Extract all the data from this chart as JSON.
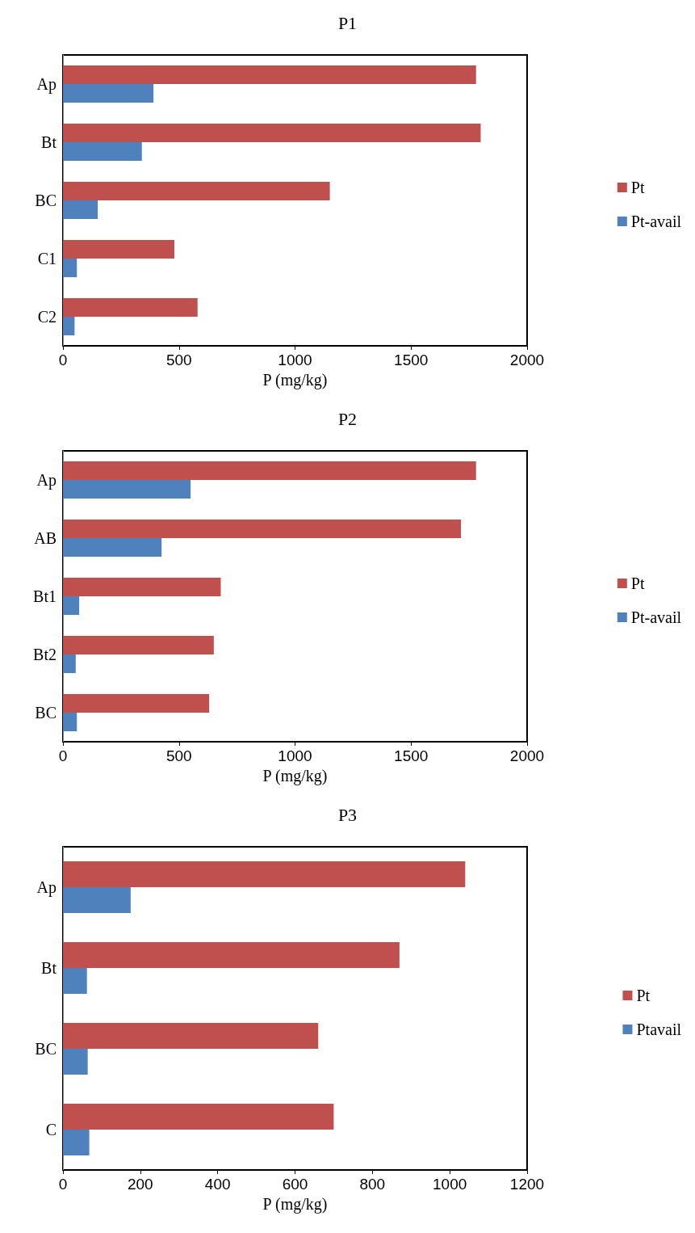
{
  "chart_data": [
    {
      "type": "bar",
      "orientation": "horizontal",
      "title": "P1",
      "xlabel": "P (mg/kg)",
      "categories": [
        "Ap",
        "Bt",
        "BC",
        "C1",
        "C2"
      ],
      "xlim": [
        0,
        2000
      ],
      "xticks": [
        0,
        500,
        1000,
        1500,
        2000
      ],
      "grid": false,
      "legend": "right",
      "series": [
        {
          "name": "Pt",
          "color": "#c0504d",
          "values": [
            1780,
            1800,
            1150,
            480,
            580
          ]
        },
        {
          "name": "Pt-avail",
          "color": "#4f81bd",
          "values": [
            390,
            340,
            150,
            60,
            50
          ]
        }
      ]
    },
    {
      "type": "bar",
      "orientation": "horizontal",
      "title": "P2",
      "xlabel": "P (mg/kg)",
      "categories": [
        "Ap",
        "AB",
        "Bt1",
        "Bt2",
        "BC"
      ],
      "xlim": [
        0,
        2000
      ],
      "xticks": [
        0,
        500,
        1000,
        1500,
        2000
      ],
      "grid": false,
      "legend": "right",
      "series": [
        {
          "name": "Pt",
          "color": "#c0504d",
          "values": [
            1780,
            1715,
            680,
            650,
            630
          ]
        },
        {
          "name": "Pt-avail",
          "color": "#4f81bd",
          "values": [
            550,
            425,
            70,
            55,
            60
          ]
        }
      ]
    },
    {
      "type": "bar",
      "orientation": "horizontal",
      "title": "P3",
      "xlabel": "P (mg/kg)",
      "categories": [
        "Ap",
        "Bt",
        "BC",
        "C"
      ],
      "xlim": [
        0,
        1200
      ],
      "xticks": [
        0,
        200,
        400,
        600,
        800,
        1000,
        1200
      ],
      "grid": false,
      "legend": "right",
      "series": [
        {
          "name": "Pt",
          "color": "#c0504d",
          "values": [
            1040,
            870,
            660,
            700
          ]
        },
        {
          "name": "Ptavail",
          "color": "#4f81bd",
          "values": [
            175,
            62,
            64,
            68
          ]
        }
      ]
    }
  ]
}
